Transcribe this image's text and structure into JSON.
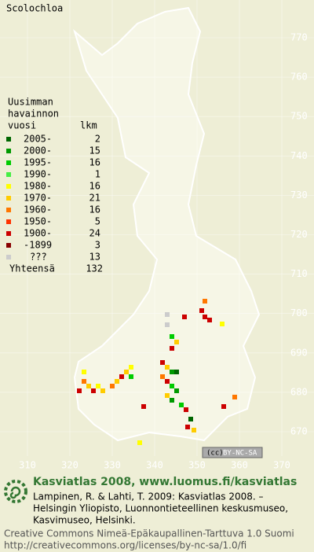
{
  "title": "Scolochloa",
  "legend": {
    "heading": [
      "Uusimman",
      "havainnon",
      "vuosi"
    ],
    "count_heading": "lkm",
    "rows": [
      {
        "label": "2005-",
        "count": 2,
        "color": "#006600"
      },
      {
        "label": "2000-",
        "count": 15,
        "color": "#009900"
      },
      {
        "label": "1995-",
        "count": 16,
        "color": "#00cc00"
      },
      {
        "label": "1990-",
        "count": 1,
        "color": "#44ee44"
      },
      {
        "label": "1980-",
        "count": 16,
        "color": "#ffff00"
      },
      {
        "label": "1970-",
        "count": 21,
        "color": "#ffcc00"
      },
      {
        "label": "1960-",
        "count": 16,
        "color": "#ff7700"
      },
      {
        "label": "1950-",
        "count": 5,
        "color": "#ff3300"
      },
      {
        "label": "1900-",
        "count": 24,
        "color": "#cc0000"
      },
      {
        "label": "-1899",
        "count": 3,
        "color": "#880000"
      },
      {
        "label": "???",
        "count": 13,
        "color": "#cccccc"
      }
    ],
    "total": {
      "label": "Yhteensä",
      "count": 132
    }
  },
  "grid": {
    "y_ticks": [
      770,
      760,
      750,
      740,
      730,
      720,
      710,
      700,
      690,
      680,
      670
    ],
    "x_ticks": [
      310,
      320,
      330,
      340,
      350,
      360,
      370
    ]
  },
  "badge": "BY-NC-SA",
  "footer": {
    "title": "Kasviatlas 2008, www.luomus.fi/kasviatlas",
    "citation": [
      "Lampinen, R. & Lahti, T. 2009: Kasviatlas 2008. –",
      "Helsingin Yliopisto, Luonnontieteellinen keskusmuseo,",
      "Kasvimuseo, Helsinki."
    ],
    "license": [
      "Creative Commons Nimeä-Epäkaupallinen-Tarttuva 1.0 Suomi",
      "http://creativecommons.org/licenses/by-nc-sa/1.0/fi"
    ]
  }
}
